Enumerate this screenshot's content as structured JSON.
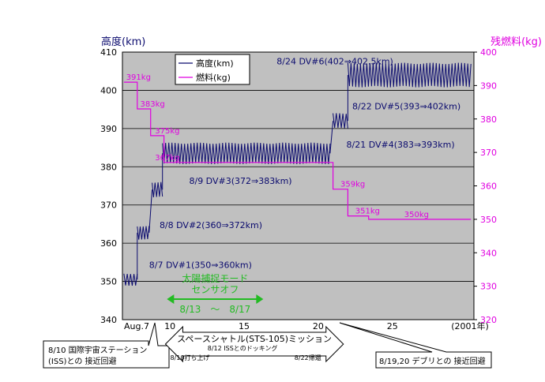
{
  "chart_data": {
    "type": "line",
    "ylabel_left": "高度(km)",
    "ylabel_right": "残燃料(kg)",
    "x_ticks": [
      {
        "x": 7,
        "label": "Aug.7"
      },
      {
        "x": 10,
        "label": "10"
      },
      {
        "x": 15,
        "label": "15"
      },
      {
        "x": 20,
        "label": "20"
      },
      {
        "x": 25,
        "label": "25"
      }
    ],
    "x_year_label": "(2001年)",
    "xlim": [
      6.8,
      30.5
    ],
    "ylim_left": [
      340,
      410
    ],
    "ylim_right": [
      320,
      400
    ],
    "y_ticks_left": [
      "340",
      "350",
      "360",
      "370",
      "380",
      "390",
      "400",
      "410"
    ],
    "y_ticks_right": [
      "320",
      "330",
      "340",
      "350",
      "360",
      "370",
      "380",
      "390",
      "400"
    ],
    "grid": true,
    "legend_position": "top-left",
    "legend": [
      {
        "name": "高度(km)",
        "color": "#0a0a6e"
      },
      {
        "name": "燃料(kg)",
        "color": "#e000e0"
      }
    ],
    "series_colors": {
      "altitude": "#0a0a6e",
      "fuel": "#e000e0"
    },
    "altitude_segments": [
      {
        "x_start": 6.9,
        "x_end": 7.8,
        "min": 348.5,
        "max": 352.5
      },
      {
        "x_start": 7.8,
        "x_end": 8.6,
        "min": 360.5,
        "max": 365.0
      },
      {
        "x_start": 8.8,
        "x_end": 9.5,
        "min": 371.5,
        "max": 376.5
      },
      {
        "x_start": 9.5,
        "x_end": 20.8,
        "min": 380.0,
        "max": 387.0
      },
      {
        "x_start": 21.0,
        "x_end": 22.0,
        "min": 389.5,
        "max": 394.5
      },
      {
        "x_start": 22.0,
        "x_end": 30.3,
        "min": 400.0,
        "max": 408.0
      }
    ],
    "fuel_steps": [
      {
        "x_start": 6.9,
        "x_end": 7.8,
        "value": 391
      },
      {
        "x_start": 7.8,
        "x_end": 8.7,
        "value": 383
      },
      {
        "x_start": 8.7,
        "x_end": 9.6,
        "value": 375
      },
      {
        "x_start": 9.6,
        "x_end": 21.0,
        "value": 367
      },
      {
        "x_start": 21.0,
        "x_end": 22.0,
        "value": 359
      },
      {
        "x_start": 22.0,
        "x_end": 23.4,
        "value": 351
      },
      {
        "x_start": 23.4,
        "x_end": 30.3,
        "value": 350
      }
    ],
    "fuel_labels": [
      {
        "text": "391kg",
        "x": 7.05,
        "value": 391
      },
      {
        "text": "383kg",
        "x": 8.0,
        "value": 383
      },
      {
        "text": "375kg",
        "x": 9.0,
        "value": 375
      },
      {
        "text": "367kg",
        "x": 9.0,
        "value": 367
      },
      {
        "text": "359kg",
        "x": 21.5,
        "value": 359
      },
      {
        "text": "351kg",
        "x": 22.5,
        "value": 351
      },
      {
        "text": "350kg",
        "x": 25.8,
        "value": 350
      }
    ],
    "maneuver_labels": [
      {
        "text": "8/7 DV#1(350⇒360km)",
        "x": 8.6,
        "alt": 353.5
      },
      {
        "text": "8/8 DV#2(360⇒372km)",
        "x": 9.3,
        "alt": 364.0
      },
      {
        "text": "8/9 DV#3(372⇒383km)",
        "x": 11.3,
        "alt": 375.5
      },
      {
        "text": "8/21 DV#4(383⇒393km)",
        "x": 21.9,
        "alt": 385.0
      },
      {
        "text": "8/22 DV#5(393⇒402km)",
        "x": 22.3,
        "alt": 395.0
      },
      {
        "text": "8/24 DV#6(402⇒402.5km)",
        "x": 17.2,
        "alt": 406.8
      }
    ],
    "sun_mode": {
      "title": "太陽捕捉モード",
      "subtitle": "センサオフ",
      "range_label": "8/13　～　8/17",
      "x_start": 9.8,
      "x_end": 16.3,
      "color": "#22bb22"
    }
  },
  "callouts": {
    "iss": {
      "line1": "8/10 国際宇宙ステーション",
      "line2": "(ISS)との 接近回避"
    },
    "shuttle": {
      "title": "スペースシャトル(STS-105)ミッション",
      "docking": "8/12 ISSとのドッキング",
      "launch": "8/10打ち上げ",
      "return": "8/22帰還",
      "x_start": 9.7,
      "x_end": 21.7
    },
    "debris": {
      "text": "8/19,20  デブリとの 接近回避"
    }
  }
}
